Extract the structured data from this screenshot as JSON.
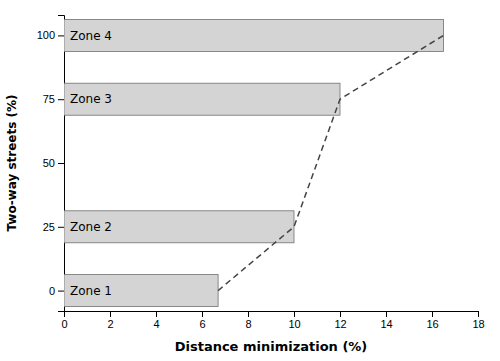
{
  "chart_data": {
    "type": "bar",
    "orientation": "horizontal",
    "xlabel": "Distance minimization (%)",
    "ylabel": "Two-way streets (%)",
    "y": [
      0,
      25,
      75,
      100
    ],
    "series": [
      {
        "type": "bar",
        "color": "#d4d4d4",
        "values": [
          6.7,
          10.0,
          12.0,
          16.5
        ],
        "labels": [
          "Zone 1",
          "Zone 2",
          "Zone 3",
          "Zone 4"
        ]
      },
      {
        "type": "line",
        "color": "#444444",
        "line_style": "dashed",
        "values": [
          6.7,
          10.0,
          12.0,
          16.5
        ]
      }
    ],
    "xlim": [
      0,
      18
    ],
    "ylim": [
      -8,
      108
    ],
    "xticks": [
      0,
      2,
      4,
      6,
      8,
      10,
      12,
      14,
      16,
      18
    ],
    "yticks": [
      0,
      25,
      50,
      75,
      100
    ],
    "grid": false
  }
}
